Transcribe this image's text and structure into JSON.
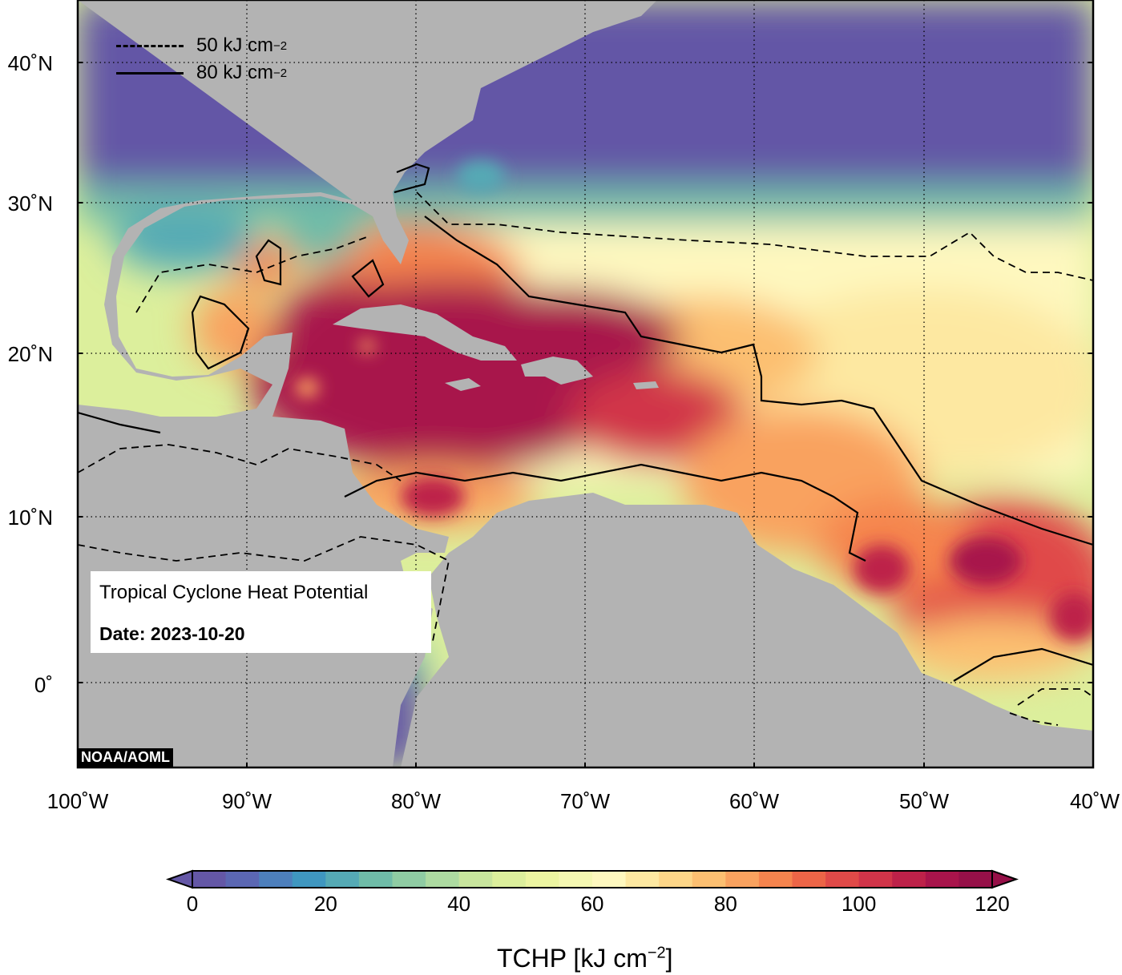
{
  "map": {
    "credit": "NOAA/AOML",
    "info_title": "Tropical Cyclone Heat Potential",
    "info_date": "Date: 2023-10-20",
    "legend": [
      {
        "style": "dashed",
        "label": "50 kJ cm",
        "sup": "−2"
      },
      {
        "style": "solid",
        "label": "80 kJ cm",
        "sup": "−2"
      }
    ],
    "lat_labels": [
      "40˚N",
      "30˚N",
      "20˚N",
      "10˚N",
      "0˚"
    ],
    "lon_labels": [
      "100˚W",
      "90˚W",
      "80˚W",
      "70˚W",
      "60˚W",
      "50˚W",
      "40˚W"
    ],
    "land_color": "#b3b3b3"
  },
  "colorbar": {
    "title": "TCHP [kJ cm",
    "title_sup": "−2",
    "title_end": "]",
    "tick_labels": [
      "0",
      "20",
      "40",
      "60",
      "80",
      "100",
      "120"
    ],
    "min": 0,
    "max": 120,
    "step": 5,
    "colors": [
      "#6457a6",
      "#5b67b3",
      "#4d7fbc",
      "#3f97c0",
      "#55aab5",
      "#6fbca8",
      "#8fcca3",
      "#addba1",
      "#c8e59d",
      "#dcef9c",
      "#ecf5a1",
      "#f5f8b2",
      "#fef8bf",
      "#fde8a1",
      "#fdd688",
      "#fcbf71",
      "#f9a25f",
      "#f5844e",
      "#ec6547",
      "#e04a48",
      "#d13449",
      "#bd2149",
      "#a8144b",
      "#961048"
    ]
  }
}
